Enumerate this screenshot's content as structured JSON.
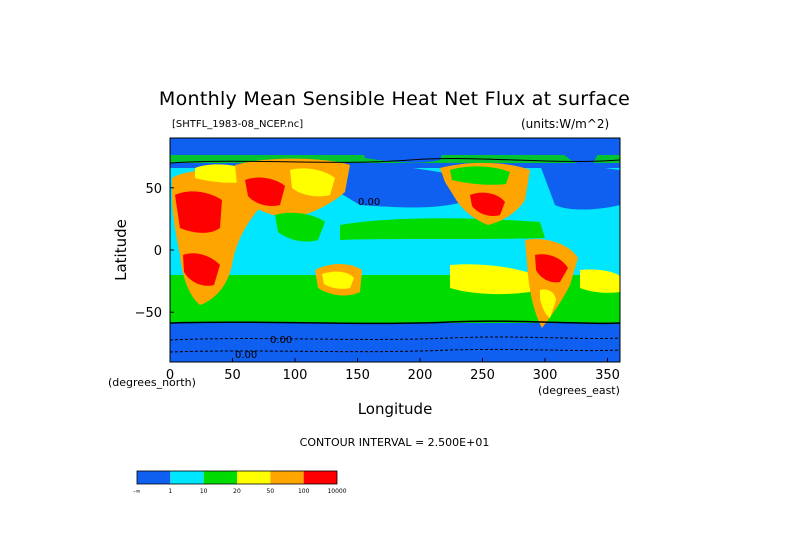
{
  "chart_data": {
    "type": "heatmap",
    "title": "Monthly Mean Sensible Heat Net Flux at surface",
    "file_label": "[SHTFL_1983-08_NCEP.nc]",
    "units_label": "(units:W/m^2)",
    "xlabel": "Longitude",
    "ylabel": "Latitude",
    "x_units_label": "(degrees_north)",
    "y_units_label": "(degrees_east)",
    "xlim": [
      0,
      360
    ],
    "ylim": [
      -90,
      90
    ],
    "x_ticks": [
      0,
      50,
      100,
      150,
      200,
      250,
      300,
      350
    ],
    "y_ticks": [
      50,
      0,
      -50
    ],
    "contour_interval_label": "CONTOUR INTERVAL = 2.500E+01",
    "colorbar": {
      "colors": [
        "#0f5ff0",
        "#00e6ff",
        "#00dc00",
        "#ffff00",
        "#ffa500",
        "#ff0000"
      ],
      "labels": [
        "-∞",
        "1",
        "10",
        "20",
        "50",
        "100",
        "10000"
      ]
    },
    "contour_labels": [
      "0.00",
      "0.00",
      "0.00"
    ]
  }
}
